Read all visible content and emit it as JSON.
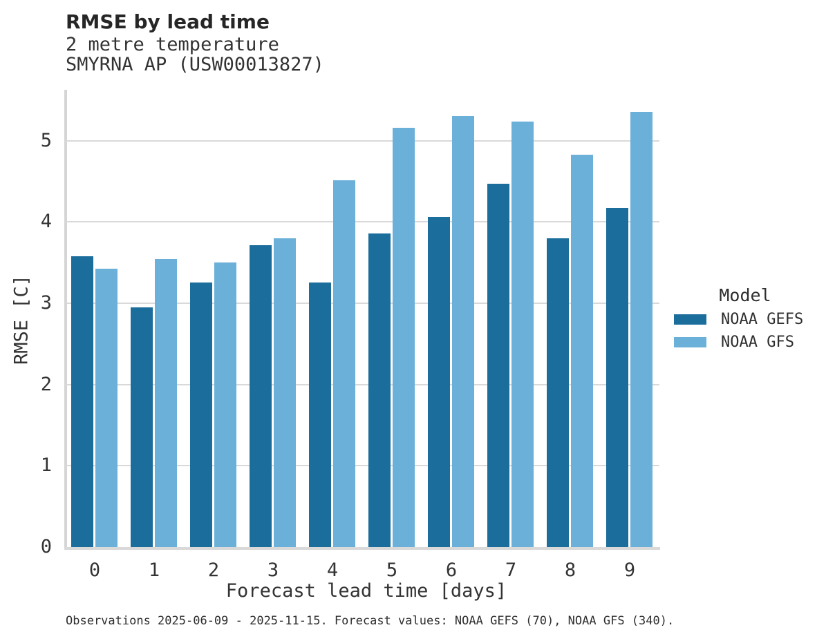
{
  "header": {
    "title": "RMSE by lead time",
    "subtitle1": "2 metre temperature",
    "subtitle2": "SMYRNA AP (USW00013827)"
  },
  "footer": {
    "note": "Observations 2025-06-09 - 2025-11-15. Forecast values: NOAA GEFS (70), NOAA GFS (340)."
  },
  "chart_data": {
    "type": "bar",
    "title": "RMSE by lead time",
    "subtitle": [
      "2 metre temperature",
      "SMYRNA AP (USW00013827)"
    ],
    "xlabel": "Forecast lead time [days]",
    "ylabel": "RMSE [C]",
    "categories": [
      "0",
      "1",
      "2",
      "3",
      "4",
      "5",
      "6",
      "7",
      "8",
      "9"
    ],
    "series": [
      {
        "name": "NOAA GEFS",
        "color": "#1b6d9c",
        "values": [
          3.58,
          2.95,
          3.25,
          3.71,
          3.25,
          3.86,
          4.06,
          4.47,
          3.8,
          4.17
        ]
      },
      {
        "name": "NOAA GFS",
        "color": "#6bb0d8",
        "values": [
          3.42,
          3.54,
          3.5,
          3.8,
          4.51,
          5.16,
          5.3,
          5.23,
          4.83,
          5.35
        ]
      }
    ],
    "ylim": [
      0,
      5.62
    ],
    "yticks": [
      0,
      1,
      2,
      3,
      4,
      5
    ],
    "grid": true,
    "legend_position": "right",
    "legend_title": "Model",
    "grid_color": "#d9d9d9",
    "spine_color": "#d5d5d5"
  }
}
